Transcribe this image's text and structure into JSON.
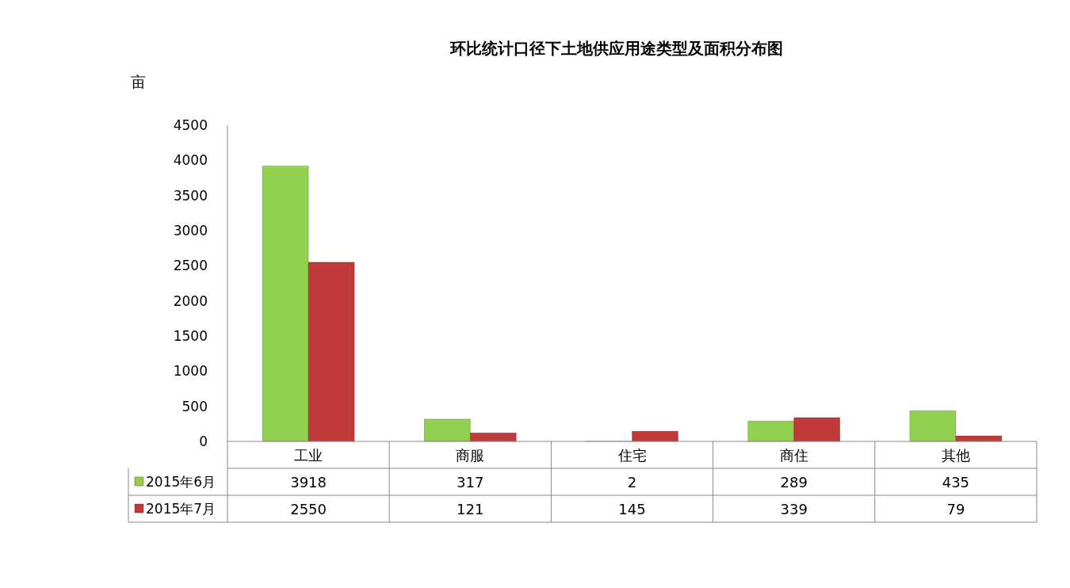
{
  "chart_data": {
    "type": "bar",
    "title": "环比统计口径下土地供应用途类型及面积分布图",
    "ylabel": "亩",
    "categories": [
      "工业",
      "商服",
      "住宅",
      "商住",
      "其他"
    ],
    "series": [
      {
        "name": "2015年6月",
        "color": "#92d050",
        "values": [
          3918,
          317,
          2,
          289,
          435
        ]
      },
      {
        "name": "2015年7月",
        "color": "#c0393b",
        "values": [
          2550,
          121,
          145,
          339,
          79
        ]
      }
    ],
    "ylim": [
      0,
      4500
    ],
    "yticks": [
      0,
      500,
      1000,
      1500,
      2000,
      2500,
      3000,
      3500,
      4000,
      4500
    ],
    "data_labels": true,
    "legend": "bottom",
    "grid": false
  }
}
